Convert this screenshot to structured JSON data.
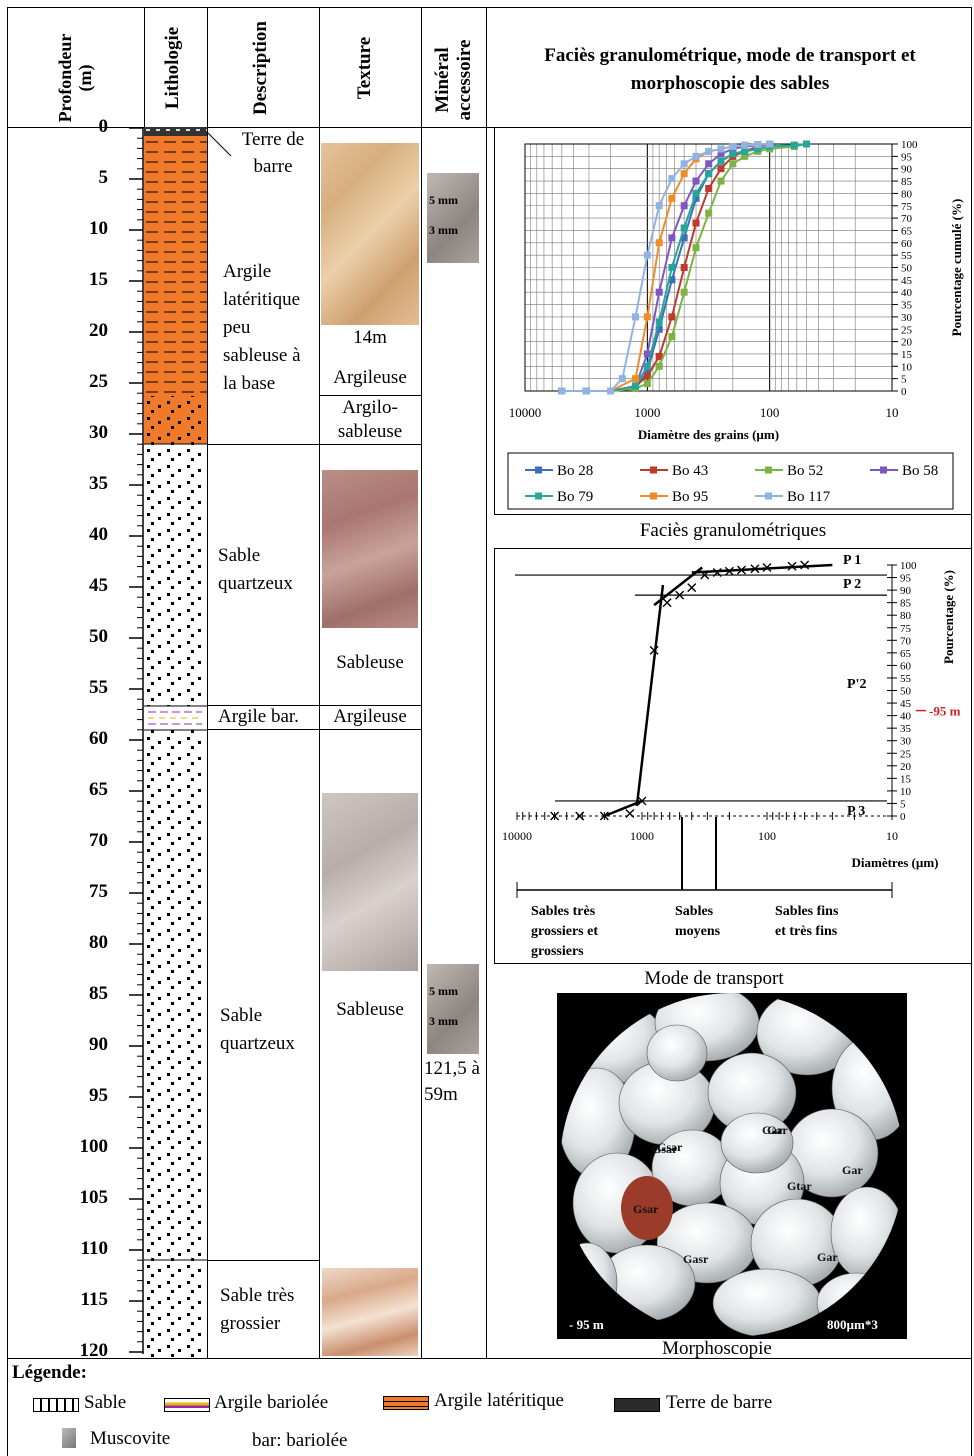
{
  "headers": {
    "profondeur": "Profondeur (m)",
    "lithologie": "Lithologie",
    "description": "Description",
    "texture": "Texture",
    "mineral": "Minéral accessoire",
    "right_title": "Faciès granulométrique, mode de transport et morphoscopie des sables"
  },
  "depth_ticks": [
    "0",
    "5",
    "10",
    "15",
    "20",
    "25",
    "30",
    "35",
    "40",
    "45",
    "50",
    "55",
    "60",
    "65",
    "70",
    "75",
    "80",
    "85",
    "90",
    "95",
    "100",
    "105",
    "110",
    "115",
    "120"
  ],
  "descriptions": {
    "terre": "Terre de barre",
    "argile_lat": "Argile latéritique peu sableuse à la base",
    "sable1": "Sable quartzeux",
    "argile_bar": "Argile bar.",
    "sable2": "Sable quartzeux",
    "sable3": "Sable très grossier"
  },
  "texture": {
    "depth14": "14m",
    "argileuse1": "Argileuse",
    "argilo_sableuse": "Argilo-sableuse",
    "sableuse1": "Sableuse",
    "argileuse2": "Argileuse",
    "sableuse2": "Sableuse"
  },
  "mineral": {
    "scale5": "5 mm",
    "scale3": "3 mm",
    "range": "121,5 à 59m"
  },
  "chart1": {
    "caption": "Faciès granulométriques",
    "xlabel": "Diamètre des grains (µm)",
    "ylabel": "Pourcentage cumulé (%)",
    "x_ticks": [
      "10000",
      "1000",
      "100",
      "10"
    ]
  },
  "chart2": {
    "caption": "Mode de transport",
    "xlabel": "Diamètres (µm)",
    "ylabel": "Pourcentage (%)",
    "marker": "-95 m",
    "pop_labels": [
      "P 1",
      "P 2",
      "P'2",
      "P 3"
    ],
    "classes": [
      "Sables très grossiers et grossiers",
      "Sables moyens",
      "Sables fins et très fins"
    ]
  },
  "photo": {
    "caption": "Morphoscopie",
    "depth": "- 95 m",
    "scale": "800µm*3",
    "grain_labels": [
      "Gsar",
      "Gar",
      "Gsar",
      "Gar",
      "Gtar",
      "Gar",
      "Gsar",
      "Gasr",
      "Gar"
    ]
  },
  "legend": {
    "title": "Légende:",
    "items": [
      "Sable",
      "Argile bariolée",
      "Argile latéritique",
      "Terre de barre",
      "Muscovite",
      "bar: bariolée"
    ]
  },
  "chart_data": [
    {
      "type": "line",
      "title": "Faciès granulométriques",
      "xlabel": "Diamètre des grains (µm)",
      "ylabel": "Pourcentage cumulé (%)",
      "x_scale": "log-reversed",
      "xlim": [
        10000,
        10
      ],
      "ylim": [
        0,
        100
      ],
      "y_ticks": [
        0,
        5,
        10,
        15,
        20,
        25,
        30,
        35,
        40,
        45,
        50,
        55,
        60,
        65,
        70,
        75,
        80,
        85,
        90,
        95,
        100
      ],
      "grid": true,
      "legend_position": "bottom",
      "series": [
        {
          "name": "Bo 28",
          "color": "#3d6fb6",
          "x": [
            5000,
            3150,
            2000,
            1250,
            1000,
            800,
            630,
            500,
            400,
            315,
            250,
            200,
            160,
            125,
            100,
            63,
            50
          ],
          "y": [
            0,
            0,
            0,
            1,
            8,
            25,
            45,
            62,
            78,
            88,
            93,
            96,
            97,
            98,
            99,
            99.5,
            100
          ]
        },
        {
          "name": "Bo 43",
          "color": "#c0392b",
          "x": [
            5000,
            3150,
            2000,
            1250,
            1000,
            800,
            630,
            500,
            400,
            315,
            250,
            200,
            160,
            125,
            100
          ],
          "y": [
            0,
            0,
            0,
            2,
            6,
            14,
            30,
            50,
            68,
            82,
            90,
            95,
            97,
            99,
            100
          ]
        },
        {
          "name": "Bo 52",
          "color": "#7cb342",
          "x": [
            5000,
            3150,
            2000,
            1250,
            1000,
            800,
            630,
            500,
            400,
            315,
            250,
            200,
            160,
            125,
            100,
            63,
            50
          ],
          "y": [
            0,
            0,
            0,
            1,
            3,
            10,
            22,
            40,
            58,
            72,
            85,
            92,
            95,
            97,
            98,
            99,
            100
          ]
        },
        {
          "name": "Bo 58",
          "color": "#7e57c2",
          "x": [
            5000,
            3150,
            2000,
            1250,
            1000,
            800,
            630,
            500,
            400,
            315,
            250,
            200,
            160,
            125,
            100
          ],
          "y": [
            0,
            0,
            0,
            2,
            15,
            40,
            62,
            75,
            85,
            92,
            96,
            98,
            99,
            99.5,
            100
          ]
        },
        {
          "name": "Bo 79",
          "color": "#26a69a",
          "x": [
            5000,
            3150,
            2000,
            1250,
            1000,
            800,
            630,
            500,
            400,
            315,
            250,
            200,
            160,
            125,
            100,
            63,
            50
          ],
          "y": [
            0,
            0,
            0,
            2,
            10,
            28,
            50,
            66,
            80,
            88,
            93,
            96,
            97,
            98,
            99,
            99.5,
            100
          ]
        },
        {
          "name": "Bo 95",
          "color": "#ef8c2a",
          "x": [
            5000,
            3150,
            2000,
            1250,
            1000,
            800,
            630,
            500,
            400,
            315,
            250,
            200,
            160,
            125,
            100
          ],
          "y": [
            0,
            0,
            0,
            5,
            30,
            60,
            78,
            88,
            94,
            97,
            98,
            99,
            99.5,
            99.8,
            100
          ]
        },
        {
          "name": "Bo 117",
          "color": "#8fb4e3",
          "x": [
            5000,
            3150,
            2000,
            1600,
            1250,
            1000,
            800,
            630,
            500,
            400,
            315,
            250,
            200,
            160,
            125,
            100
          ],
          "y": [
            0,
            0,
            0,
            5,
            30,
            55,
            75,
            86,
            92,
            95,
            97,
            98,
            99,
            99.5,
            99.8,
            100
          ]
        }
      ]
    },
    {
      "type": "line",
      "title": "Mode de transport",
      "xlabel": "Diamètres (µm)",
      "ylabel": "Pourcentage (%)",
      "x_scale": "log-reversed",
      "xlim": [
        10000,
        10
      ],
      "ylim": [
        0,
        100
      ],
      "series": [
        {
          "name": "-95 m",
          "x": [
            5000,
            3150,
            2000,
            1250,
            1000,
            800,
            630,
            500,
            400,
            315,
            250,
            200,
            160,
            125,
            100,
            63,
            50
          ],
          "y": [
            0,
            0,
            0,
            1,
            6,
            66,
            85,
            88,
            91,
            96,
            97,
            97.5,
            98,
            98.5,
            99,
            99.5,
            100
          ]
        }
      ]
    }
  ]
}
